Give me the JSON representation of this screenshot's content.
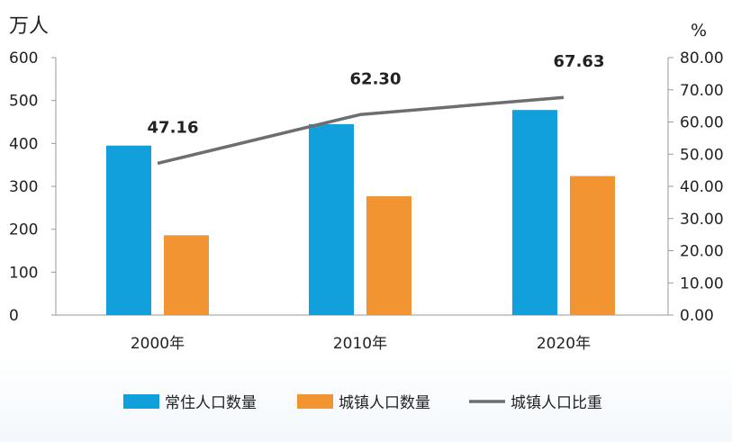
{
  "chart_data": {
    "type": "bar",
    "categories": [
      "2000年",
      "2010年",
      "2020年"
    ],
    "left_axis": {
      "unit": "万人",
      "ylim": [
        0,
        600
      ],
      "ticks": [
        "0",
        "100",
        "200",
        "300",
        "400",
        "500",
        "600"
      ]
    },
    "right_axis": {
      "unit": "%",
      "ylim": [
        0,
        80
      ],
      "ticks": [
        "0.00",
        "10.00",
        "20.00",
        "30.00",
        "40.00",
        "50.00",
        "60.00",
        "70.00",
        "80.00"
      ]
    },
    "series": [
      {
        "name": "常住人口数量",
        "type": "bar",
        "axis": "left",
        "color": "#12a0dc",
        "values": [
          395,
          445,
          478
        ]
      },
      {
        "name": "城镇人口数量",
        "type": "bar",
        "axis": "left",
        "color": "#f39433",
        "values": [
          186,
          277,
          324
        ]
      },
      {
        "name": "城镇人口比重",
        "type": "line",
        "axis": "right",
        "color": "#6d6e71",
        "values": [
          47.16,
          62.3,
          67.63
        ],
        "data_labels": [
          "47.16",
          "62.30",
          "67.63"
        ]
      }
    ],
    "grid": false,
    "legend_position": "bottom"
  }
}
